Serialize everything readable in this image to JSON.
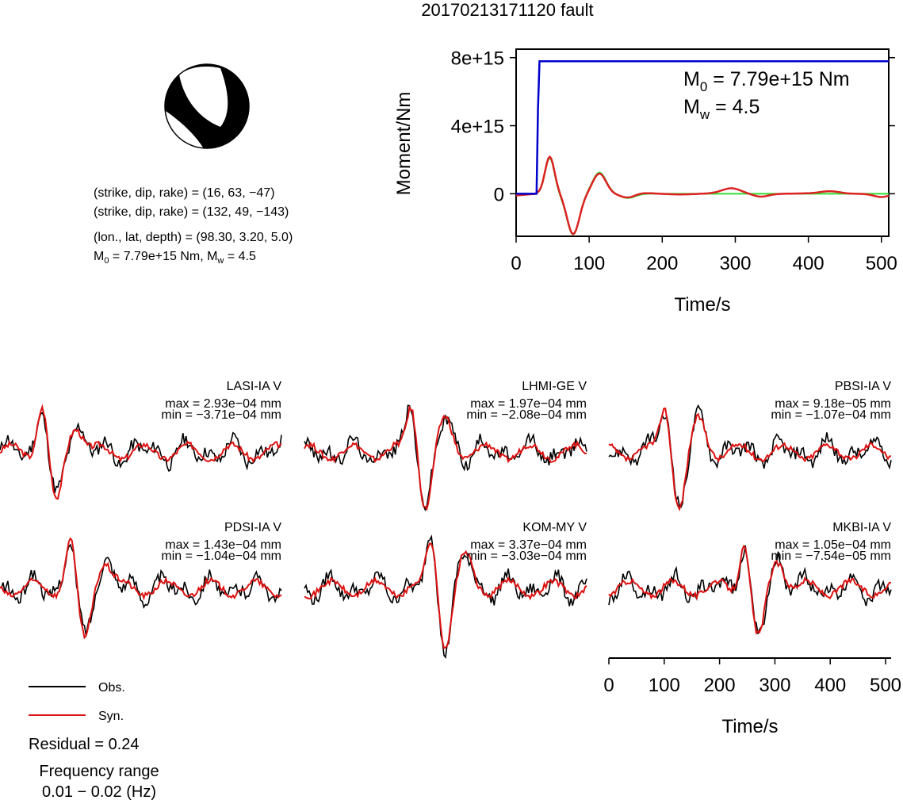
{
  "title": "20170213171120 fault",
  "mechanism": {
    "plane1": "(strike, dip, rake) = (16, 63, −47)",
    "plane2": "(strike, dip, rake) = (132, 49, −143)",
    "location": "(lon., lat, depth) = (98.30, 3.20, 5.0)",
    "m0_prefix": "M",
    "m0_sub": "0",
    "m0_rest": " = 7.79e+15 Nm, M",
    "mw_sub": "w",
    "mw_rest": " = 4.5"
  },
  "moment_panel": {
    "ylabel": "Moment/Nm",
    "xlabel": "Time/s",
    "m0_label_main": "M",
    "m0_label_sub": "0",
    "m0_label_rest": " = 7.79e+15 Nm",
    "mw_label_main": "M",
    "mw_label_sub": "w",
    "mw_label_rest": " = 4.5",
    "colors": {
      "moment": "#0000cc",
      "green": "#33dd33",
      "red": "#dd2222"
    }
  },
  "waveforms": {
    "stations": [
      {
        "name": "LASI-IA V",
        "max": "max = 2.93e−04 mm",
        "min": "min = −3.71e−04 mm"
      },
      {
        "name": "LHMI-GE V",
        "max": "max = 1.97e−04 mm",
        "min": "min = −2.08e−04 mm"
      },
      {
        "name": "PBSI-IA V",
        "max": "max = 9.18e−05 mm",
        "min": "min = −1.07e−04 mm"
      },
      {
        "name": "PDSI-IA V",
        "max": "max = 1.43e−04 mm",
        "min": "min = −1.04e−04 mm"
      },
      {
        "name": "KOM-MY V",
        "max": "max = 3.37e−04 mm",
        "min": "min = −3.03e−04 mm"
      },
      {
        "name": "MKBI-IA V",
        "max": "max = 1.05e−04 mm",
        "min": "min = −7.54e−05 mm"
      }
    ],
    "xlabel": "Time/s",
    "colors": {
      "obs": "#000000",
      "syn": "#dd1111"
    }
  },
  "legend": {
    "obs": "Obs.",
    "syn": "Syn.",
    "residual": "Residual = 0.24",
    "freq_title": "Frequency range",
    "freq_value": "0.01 − 0.02 (Hz)"
  },
  "chart_data": [
    {
      "type": "line",
      "title": "20170213171120 fault",
      "xlabel": "Time/s",
      "ylabel": "Moment/Nm",
      "xlim": [
        0,
        510
      ],
      "ylim": [
        -2500000000000000.0,
        8500000000000000.0
      ],
      "x_ticks": [
        0,
        100,
        200,
        300,
        400,
        500
      ],
      "y_ticks": [
        0,
        4000000000000000.0,
        8000000000000000.0
      ],
      "y_tick_labels": [
        "0",
        "4e+15",
        "8e+15"
      ],
      "series": [
        {
          "color": "#0000cc",
          "x": [
            0,
            28,
            30,
            32,
            510
          ],
          "y": [
            0,
            0,
            5000000000000000.0,
            7790000000000000.0,
            7790000000000000.0
          ]
        }
      ]
    },
    {
      "type": "line",
      "xlabel": "Time/s",
      "xlim": [
        0,
        510
      ],
      "x_ticks": [
        0,
        100,
        200,
        300,
        400,
        500
      ],
      "series": [
        {
          "name": "Obs.",
          "color": "#000000"
        },
        {
          "name": "Syn.",
          "color": "#dd1111"
        }
      ]
    }
  ]
}
